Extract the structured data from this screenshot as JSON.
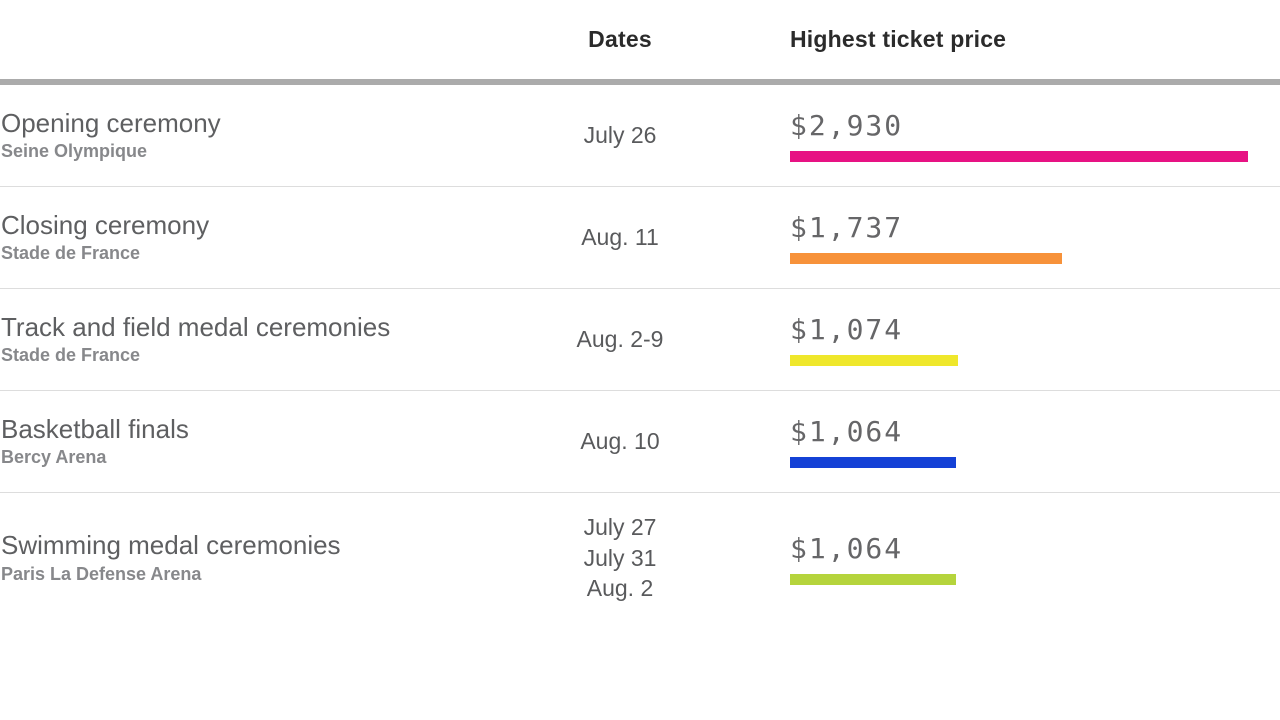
{
  "header": {
    "dates_label": "Dates",
    "price_label": "Highest ticket price"
  },
  "rows": [
    {
      "event": "Opening ceremony",
      "venue": "Seine Olympique",
      "dates": "July 26",
      "price_label": "$2,930",
      "value": 2930,
      "color": "#e71283"
    },
    {
      "event": "Closing ceremony",
      "venue": "Stade de France",
      "dates": "Aug. 11",
      "price_label": "$1,737",
      "value": 1737,
      "color": "#f7923a"
    },
    {
      "event": "Track and field medal ceremonies",
      "venue": "Stade de France",
      "dates": "Aug. 2-9",
      "price_label": "$1,074",
      "value": 1074,
      "color": "#efe72b"
    },
    {
      "event": "Basketball finals",
      "venue": "Bercy Arena",
      "dates": "Aug. 10",
      "price_label": "$1,064",
      "value": 1064,
      "color": "#1441d6"
    },
    {
      "event": "Swimming medal ceremonies",
      "venue": "Paris La Defense Arena",
      "dates": "July 27\nJuly 31\nAug. 2",
      "price_label": "$1,064",
      "value": 1064,
      "color": "#b5d43c"
    }
  ],
  "chart_data": {
    "type": "bar",
    "orientation": "horizontal",
    "categories": [
      "Opening ceremony (Seine Olympique)",
      "Closing ceremony (Stade de France)",
      "Track and field medal ceremonies (Stade de France)",
      "Basketball finals (Bercy Arena)",
      "Swimming medal ceremonies (Paris La Defense Arena)"
    ],
    "dates": [
      "July 26",
      "Aug. 11",
      "Aug. 2-9",
      "Aug. 10",
      "July 27 / July 31 / Aug. 2"
    ],
    "values": [
      2930,
      1737,
      1074,
      1064,
      1064
    ],
    "data_labels": [
      "$2,930",
      "$1,737",
      "$1,074",
      "$1,064",
      "$1,064"
    ],
    "bar_colors": [
      "#e71283",
      "#f7923a",
      "#efe72b",
      "#1441d6",
      "#b5d43c"
    ],
    "title": "",
    "xlabel": "Highest ticket price",
    "ylabel": "",
    "xmax": 2930,
    "grid": false,
    "legend": false
  },
  "colors": {
    "header_text": "#2b2b2b",
    "event_title": "#5e5f61",
    "venue_text": "#87888b",
    "date_text": "#595a5c",
    "price_text": "#666668",
    "thick_rule": "#ababab",
    "divider": "#dddddd",
    "background": "#ffffff"
  }
}
